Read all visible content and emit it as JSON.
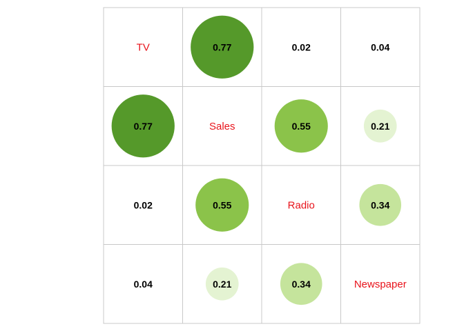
{
  "chart_data": {
    "type": "heatmap",
    "variables": [
      "TV",
      "Sales",
      "Radio",
      "Newspaper"
    ],
    "matrix": [
      [
        null,
        0.77,
        0.02,
        0.04
      ],
      [
        0.77,
        null,
        0.55,
        0.21
      ],
      [
        0.02,
        0.55,
        null,
        0.34
      ],
      [
        0.04,
        0.21,
        0.34,
        null
      ]
    ],
    "value_labels": [
      [
        null,
        "0.77",
        "0.02",
        "0.04"
      ],
      [
        "0.77",
        null,
        "0.55",
        "0.21"
      ],
      [
        "0.02",
        "0.55",
        null,
        "0.34"
      ],
      [
        "0.04",
        "0.21",
        "0.34",
        null
      ]
    ],
    "title": "",
    "xlabel": "",
    "ylabel": "",
    "value_range": [
      0,
      1
    ],
    "grid": true,
    "legend": "none",
    "colors": {
      "variable_label": "#e8131b",
      "grid_line": "#c8c8c8",
      "cell_background": "#ffffff",
      "circle_scale": [
        "#e4f3d2",
        "#c5e49c",
        "#8bc34a",
        "#55992a"
      ]
    }
  }
}
